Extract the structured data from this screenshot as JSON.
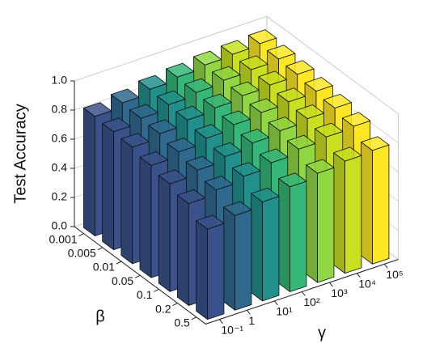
{
  "chart_data": {
    "type": "bar3d",
    "zlabel": "Test Accuracy",
    "xlabel": "γ",
    "ylabel": "β",
    "x_categories": [
      "10⁻¹",
      "1",
      "10¹",
      "10²",
      "10³",
      "10⁴",
      "10⁵"
    ],
    "colors": [
      "#3a528b",
      "#30698e",
      "#21908d",
      "#35b779",
      "#90d743",
      "#c8e020",
      "#fde725"
    ],
    "series": [
      {
        "name": "0.001",
        "values": [
          0.82,
          0.85,
          0.88,
          0.9,
          0.92,
          0.93,
          0.94
        ]
      },
      {
        "name": "0.005",
        "values": [
          0.81,
          0.84,
          0.87,
          0.89,
          0.91,
          0.92,
          0.93
        ]
      },
      {
        "name": "0.01",
        "values": [
          0.8,
          0.83,
          0.86,
          0.88,
          0.9,
          0.91,
          0.92
        ]
      },
      {
        "name": "0.05",
        "values": [
          0.77,
          0.8,
          0.83,
          0.86,
          0.88,
          0.89,
          0.9
        ]
      },
      {
        "name": "0.1",
        "values": [
          0.74,
          0.77,
          0.8,
          0.83,
          0.85,
          0.87,
          0.88
        ]
      },
      {
        "name": "0.2",
        "values": [
          0.7,
          0.73,
          0.76,
          0.79,
          0.82,
          0.84,
          0.85
        ]
      },
      {
        "name": "0.5",
        "values": [
          0.62,
          0.65,
          0.68,
          0.72,
          0.75,
          0.77,
          0.78
        ]
      }
    ],
    "zlim": [
      0,
      1
    ],
    "zticks": [
      {
        "value": 0,
        "label": "0.0"
      },
      0.2,
      0.4,
      0.6,
      0.8,
      {
        "value": 1,
        "label": "1.0"
      }
    ],
    "grid": true
  }
}
